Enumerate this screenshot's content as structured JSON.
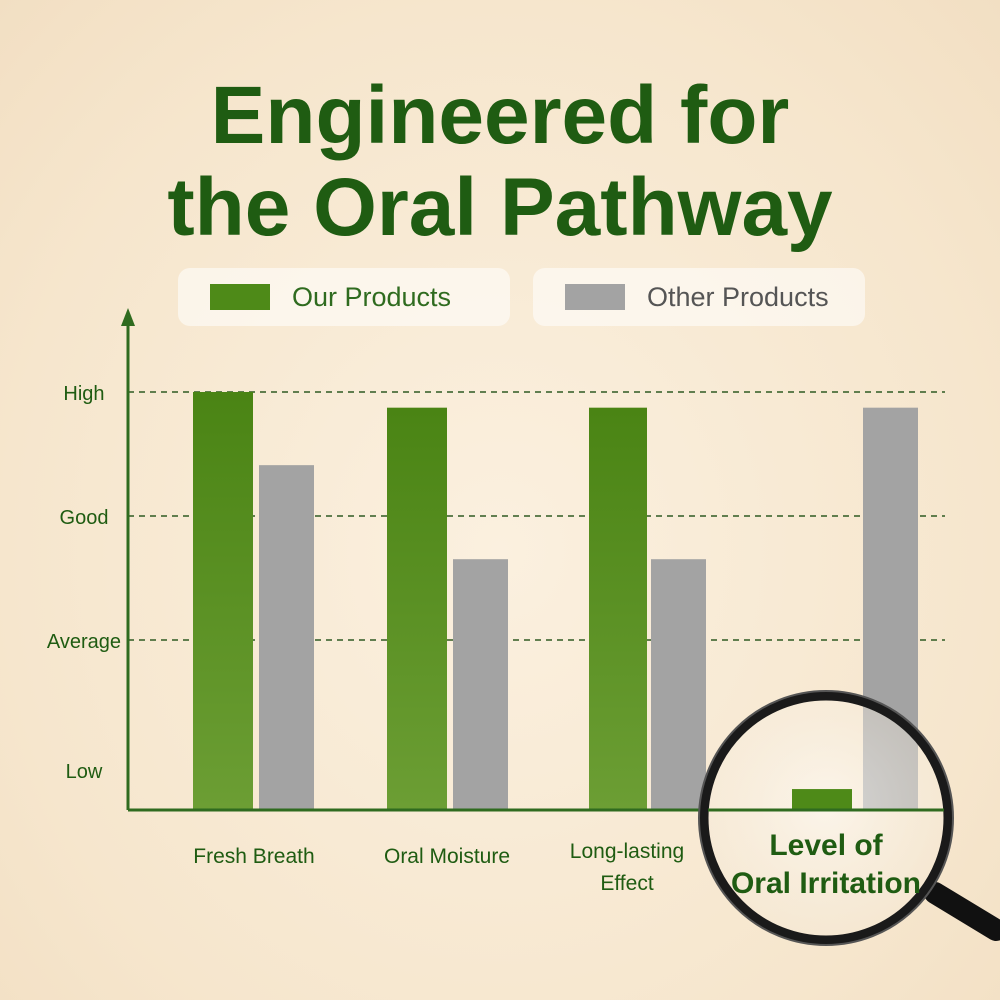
{
  "chart_data": {
    "type": "bar",
    "title": [
      "Engineered for",
      "the Oral Pathway"
    ],
    "categories": [
      [
        "Fresh Breath"
      ],
      [
        "Oral Moisture"
      ],
      [
        "Long-lasting",
        "Effect"
      ],
      [
        "Level of",
        "Oral Irritation"
      ]
    ],
    "y_ticks": [
      "Low",
      "Average",
      "Good",
      "High"
    ],
    "ylim": [
      0,
      4
    ],
    "series": [
      {
        "name": "Our Products",
        "color": "#4e8a18",
        "values": [
          4.0,
          3.85,
          3.85,
          0.2
        ]
      },
      {
        "name": "Other Products",
        "color": "#a3a3a3",
        "values": [
          3.3,
          2.4,
          2.4,
          3.85
        ]
      }
    ],
    "grid": "dashed horizontal at Average, Good, High",
    "legend": "top",
    "axis_color": "#2f6b1f",
    "highlight": {
      "category_index": 3,
      "icon": "magnifying-glass-icon"
    }
  }
}
